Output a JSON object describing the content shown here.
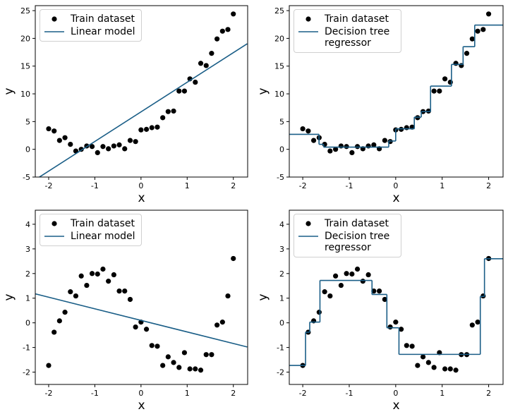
{
  "chart_data": [
    {
      "type": "scatter",
      "xlabel": "x",
      "ylabel": "y",
      "xlim": [
        -2.29,
        2.31
      ],
      "ylim": [
        -5,
        25.9
      ],
      "xticks": [
        -2,
        -1,
        0,
        1,
        2
      ],
      "yticks": [
        -5,
        0,
        5,
        10,
        15,
        20,
        25
      ],
      "legend": "upper left",
      "series": [
        {
          "name": "Train dataset",
          "type": "scatter",
          "color": "#000000",
          "x": [
            -2,
            -1.882,
            -1.765,
            -1.647,
            -1.529,
            -1.412,
            -1.294,
            -1.176,
            -1.059,
            -0.941,
            -0.824,
            -0.706,
            -0.588,
            -0.471,
            -0.353,
            -0.235,
            -0.118,
            0,
            0.118,
            0.235,
            0.353,
            0.471,
            0.588,
            0.706,
            0.824,
            0.941,
            1.059,
            1.176,
            1.294,
            1.412,
            1.529,
            1.647,
            1.765,
            1.882,
            2
          ],
          "values": [
            3.7,
            3.3,
            1.6,
            2.1,
            0.9,
            -0.3,
            0,
            0.6,
            0.5,
            -0.6,
            0.5,
            0.1,
            0.6,
            0.8,
            0.1,
            1.6,
            1.4,
            3.5,
            3.6,
            3.9,
            4.0,
            5.7,
            6.8,
            6.9,
            10.5,
            10.5,
            12.7,
            12.1,
            15.5,
            15.1,
            17.3,
            19.9,
            21.3,
            21.6,
            24.4
          ]
        },
        {
          "name": "Linear model",
          "type": "line",
          "color": "#1a5e87",
          "x": [
            -2.3,
            2.3
          ],
          "values": [
            -5.53,
            19.03
          ]
        }
      ]
    },
    {
      "type": "scatter",
      "xlabel": "x",
      "ylabel": "y",
      "xlim": [
        -2.29,
        2.31
      ],
      "ylim": [
        -5,
        25.9
      ],
      "xticks": [
        -2,
        -1,
        0,
        1,
        2
      ],
      "yticks": [
        -5,
        0,
        5,
        10,
        15,
        20,
        25
      ],
      "legend": "upper left",
      "series": [
        {
          "name": "Train dataset",
          "type": "scatter",
          "color": "#000000",
          "x": [
            -2,
            -1.882,
            -1.765,
            -1.647,
            -1.529,
            -1.412,
            -1.294,
            -1.176,
            -1.059,
            -0.941,
            -0.824,
            -0.706,
            -0.588,
            -0.471,
            -0.353,
            -0.235,
            -0.118,
            0,
            0.118,
            0.235,
            0.353,
            0.471,
            0.588,
            0.706,
            0.824,
            0.941,
            1.059,
            1.176,
            1.294,
            1.412,
            1.529,
            1.647,
            1.765,
            1.882,
            2
          ],
          "values": [
            3.7,
            3.3,
            1.6,
            2.1,
            0.9,
            -0.3,
            0,
            0.6,
            0.5,
            -0.6,
            0.5,
            0.1,
            0.6,
            0.8,
            0.1,
            1.6,
            1.4,
            3.5,
            3.6,
            3.9,
            4.0,
            5.7,
            6.8,
            6.9,
            10.5,
            10.5,
            12.7,
            12.1,
            15.5,
            15.1,
            17.3,
            19.9,
            21.3,
            21.6,
            24.4
          ]
        },
        {
          "name": "Decision tree regressor",
          "type": "step",
          "color": "#1a5e87",
          "x": [
            -2.3,
            -1.65,
            -1.55,
            -0.15,
            0.0,
            0.4,
            0.55,
            0.75,
            1.2,
            1.45,
            1.7
          ],
          "values": [
            2.7,
            0.9,
            0.4,
            1.5,
            3.7,
            5.8,
            6.8,
            11.4,
            15.3,
            18.5,
            22.4
          ]
        }
      ]
    },
    {
      "type": "scatter",
      "xlabel": "x",
      "ylabel": "y",
      "xlim": [
        -2.29,
        2.31
      ],
      "ylim": [
        -2.5,
        4.57
      ],
      "xticks": [
        -2,
        -1,
        0,
        1,
        2
      ],
      "yticks": [
        -2,
        -1,
        0,
        1,
        2,
        3,
        4
      ],
      "legend": "upper left",
      "series": [
        {
          "name": "Train dataset",
          "type": "scatter",
          "color": "#000000",
          "x": [
            -2,
            -1.882,
            -1.765,
            -1.647,
            -1.529,
            -1.412,
            -1.294,
            -1.176,
            -1.059,
            -0.941,
            -0.824,
            -0.706,
            -0.588,
            -0.471,
            -0.353,
            -0.235,
            -0.118,
            0,
            0.118,
            0.235,
            0.353,
            0.471,
            0.588,
            0.706,
            0.824,
            0.941,
            1.059,
            1.176,
            1.294,
            1.412,
            1.529,
            1.647,
            1.765,
            1.882,
            2
          ],
          "values": [
            -1.73,
            -0.38,
            0.08,
            0.43,
            1.26,
            1.09,
            1.9,
            1.52,
            2.0,
            1.98,
            2.18,
            1.69,
            1.95,
            1.29,
            1.29,
            0.95,
            -0.17,
            0.03,
            -0.26,
            -0.92,
            -0.95,
            -1.73,
            -1.38,
            -1.61,
            -1.81,
            -1.21,
            -1.87,
            -1.87,
            -1.92,
            -1.29,
            -1.29,
            -0.09,
            0.03,
            1.09,
            2.61
          ]
        },
        {
          "name": "Linear model",
          "type": "line",
          "color": "#1a5e87",
          "x": [
            -2.3,
            2.3
          ],
          "values": [
            1.18,
            -0.98
          ]
        }
      ]
    },
    {
      "type": "scatter",
      "xlabel": "x",
      "ylabel": "y",
      "xlim": [
        -2.29,
        2.31
      ],
      "ylim": [
        -2.5,
        4.57
      ],
      "xticks": [
        -2,
        -1,
        0,
        1,
        2
      ],
      "yticks": [
        -2,
        -1,
        0,
        1,
        2,
        3,
        4
      ],
      "legend": "upper left",
      "series": [
        {
          "name": "Train dataset",
          "type": "scatter",
          "color": "#000000",
          "x": [
            -2,
            -1.882,
            -1.765,
            -1.647,
            -1.529,
            -1.412,
            -1.294,
            -1.176,
            -1.059,
            -0.941,
            -0.824,
            -0.706,
            -0.588,
            -0.471,
            -0.353,
            -0.235,
            -0.118,
            0,
            0.118,
            0.235,
            0.353,
            0.471,
            0.588,
            0.706,
            0.824,
            0.941,
            1.059,
            1.176,
            1.294,
            1.412,
            1.529,
            1.647,
            1.765,
            1.882,
            2
          ],
          "values": [
            -1.73,
            -0.38,
            0.08,
            0.43,
            1.26,
            1.09,
            1.9,
            1.52,
            2.0,
            1.98,
            2.18,
            1.69,
            1.95,
            1.29,
            1.29,
            0.95,
            -0.17,
            0.03,
            -0.26,
            -0.92,
            -0.95,
            -1.73,
            -1.38,
            -1.61,
            -1.81,
            -1.21,
            -1.87,
            -1.87,
            -1.92,
            -1.29,
            -1.29,
            -0.09,
            0.03,
            1.09,
            2.61
          ]
        },
        {
          "name": "Decision tree regressor",
          "type": "step",
          "color": "#1a5e87",
          "x": [
            -2.3,
            -1.94,
            -1.85,
            -1.63,
            -0.51,
            -0.19,
            0.07,
            1.82,
            1.91
          ],
          "values": [
            -1.73,
            -0.38,
            0.03,
            1.72,
            1.15,
            -0.2,
            -1.28,
            1.07,
            2.6
          ]
        }
      ]
    }
  ]
}
